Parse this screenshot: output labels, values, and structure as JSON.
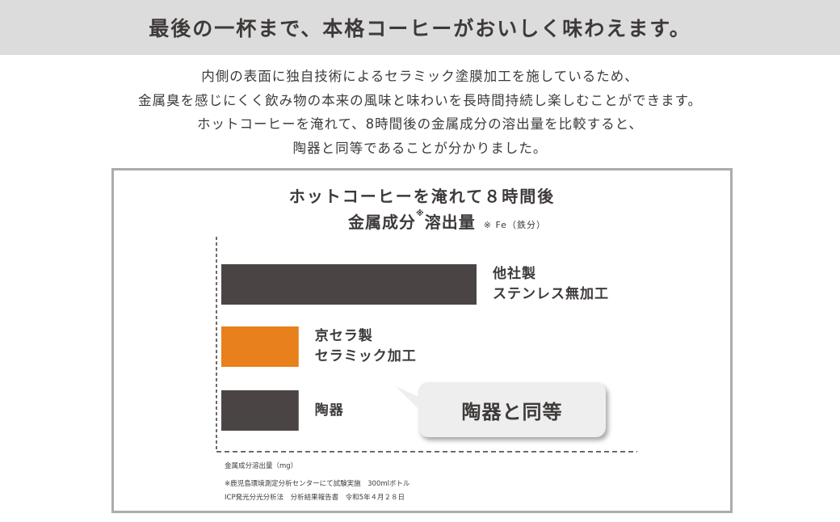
{
  "header": {
    "title": "最後の一杯まで、本格コーヒーがおいしく味わえます。"
  },
  "intro": [
    "内側の表面に独自技術によるセラミック塗膜加工を施しているため、",
    "金属臭を感じにくく飲み物の本来の風味と味わいを長時間持続し楽しむことができます。",
    "ホットコーヒーを淹れて、8時間後の金属成分の溶出量を比較すると、",
    "陶器と同等であることが分かりました。"
  ],
  "chart_data": {
    "type": "bar",
    "orientation": "horizontal",
    "title": "ホットコーヒーを淹れて８時間後",
    "subtitle_main": "金属成分",
    "subtitle_mark": "※",
    "subtitle_rest": "溶出量",
    "subtitle_note": "※ Fe（鉄分）",
    "xlabel": "金属成分溶出量（mg）",
    "categories": [
      [
        "他社製",
        "ステンレス無加工"
      ],
      [
        "京セラ製",
        "セラミック加工"
      ],
      [
        "陶器"
      ]
    ],
    "values": [
      3.3,
      1,
      1
    ],
    "colors": [
      "#4a4544",
      "#e8801b",
      "#4a4544"
    ],
    "annotation": "陶器と同等",
    "grid": false
  },
  "notes": [
    "※鹿児島環境測定分析センターにて試験実施　300mlボトル",
    "ICP発光分光分析法　分析結果報告書　令和5年４月２８日"
  ]
}
